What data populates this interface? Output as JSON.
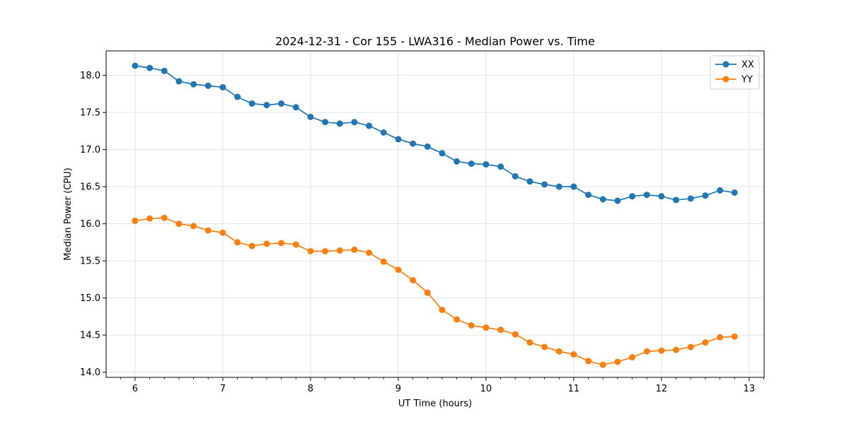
{
  "chart_data": {
    "type": "line",
    "title": "2024-12-31 - Cor 155 - LWA316 - Median Power vs. Time",
    "xlabel": "UT Time (hours)",
    "ylabel": "Median Power (CPU)",
    "xlim": [
      5.67,
      13.17
    ],
    "ylim": [
      13.93,
      18.33
    ],
    "xticks": [
      6,
      7,
      8,
      9,
      10,
      11,
      12,
      13
    ],
    "yticks": [
      14.0,
      14.5,
      15.0,
      15.5,
      16.0,
      16.5,
      17.0,
      17.5,
      18.0
    ],
    "xtick_labels": [
      "6",
      "7",
      "8",
      "9",
      "10",
      "11",
      "12",
      "13"
    ],
    "ytick_labels": [
      "14.0",
      "14.5",
      "15.0",
      "15.5",
      "16.0",
      "16.5",
      "17.0",
      "17.5",
      "18.0"
    ],
    "grid": true,
    "legend_position": "top-right",
    "x": [
      6.0,
      6.1667,
      6.3333,
      6.5,
      6.6667,
      6.8333,
      7.0,
      7.1667,
      7.3333,
      7.5,
      7.6667,
      7.8333,
      8.0,
      8.1667,
      8.3333,
      8.5,
      8.6667,
      8.8333,
      9.0,
      9.1667,
      9.3333,
      9.5,
      9.6667,
      9.8333,
      10.0,
      10.1667,
      10.3333,
      10.5,
      10.6667,
      10.8333,
      11.0,
      11.1667,
      11.3333,
      11.5,
      11.6667,
      11.8333,
      12.0,
      12.1667,
      12.3333,
      12.5,
      12.6667,
      12.8333
    ],
    "series": [
      {
        "name": "XX",
        "color": "#1f77b4",
        "values": [
          18.13,
          18.1,
          18.06,
          17.92,
          17.88,
          17.86,
          17.84,
          17.71,
          17.62,
          17.6,
          17.62,
          17.57,
          17.44,
          17.37,
          17.35,
          17.37,
          17.32,
          17.23,
          17.14,
          17.08,
          17.04,
          16.95,
          16.84,
          16.81,
          16.8,
          16.77,
          16.64,
          16.57,
          16.53,
          16.5,
          16.5,
          16.39,
          16.33,
          16.31,
          16.37,
          16.39,
          16.37,
          16.32,
          16.34,
          16.38,
          16.45,
          16.42
        ]
      },
      {
        "name": "YY",
        "color": "#ff7f0e",
        "values": [
          16.04,
          16.07,
          16.08,
          16.0,
          15.97,
          15.91,
          15.88,
          15.75,
          15.7,
          15.73,
          15.74,
          15.72,
          15.63,
          15.63,
          15.64,
          15.65,
          15.61,
          15.49,
          15.38,
          15.24,
          15.07,
          14.84,
          14.71,
          14.63,
          14.6,
          14.57,
          14.51,
          14.4,
          14.34,
          14.28,
          14.24,
          14.15,
          14.1,
          14.14,
          14.2,
          14.28,
          14.29,
          14.3,
          14.34,
          14.4,
          14.47,
          14.48
        ]
      }
    ]
  }
}
